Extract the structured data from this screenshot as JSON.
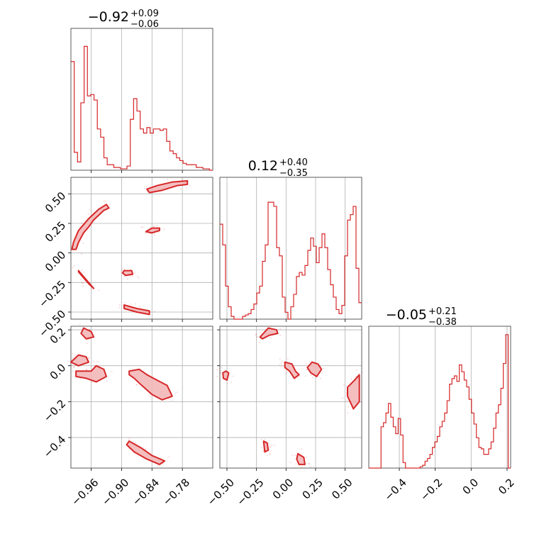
{
  "chart_data": {
    "type": "corner",
    "color": "#d62728",
    "parameters": [
      {
        "title_value": "−0.92",
        "title_plus": "+0.09",
        "title_minus": "−0.06",
        "range": [
          -1.0,
          -0.72
        ],
        "ticks": [
          -0.96,
          -0.9,
          -0.84,
          -0.78
        ],
        "ticklabels": [
          "−0.96",
          "−0.90",
          "−0.84",
          "−0.78"
        ]
      },
      {
        "title_value": "0.12",
        "title_plus": "+0.40",
        "title_minus": "−0.35",
        "range": [
          -0.56,
          0.64
        ],
        "ticks": [
          -0.5,
          -0.25,
          0.0,
          0.25,
          0.5
        ],
        "ticklabels": [
          "−0.50",
          "−0.25",
          "0.00",
          "0.25",
          "0.50"
        ]
      },
      {
        "title_value": "−0.05",
        "title_plus": "+0.21",
        "title_minus": "−0.38",
        "range": [
          -0.57,
          0.22
        ],
        "ticks": [
          -0.4,
          -0.2,
          0.0,
          0.2
        ],
        "ticklabels": [
          "−0.4",
          "−0.2",
          "0.0",
          "0.2"
        ]
      }
    ],
    "histograms": [
      [
        0.79,
        0.13,
        0.06,
        0.49,
        0.9,
        0.54,
        0.55,
        0.51,
        0.3,
        0.24,
        0.09,
        0.04,
        0.04,
        0.02,
        0.02,
        0.01,
        0.01,
        0.03,
        0.37,
        0.52,
        0.43,
        0.3,
        0.27,
        0.31,
        0.27,
        0.3,
        0.3,
        0.29,
        0.3,
        0.21,
        0.14,
        0.12,
        0.09,
        0.07,
        0.05,
        0.04,
        0.04,
        0.04,
        0.02,
        0.02,
        0.01,
        0.01,
        0.0
      ],
      [
        0.69,
        0.54,
        0.24,
        0.09,
        0.02,
        0.0,
        0.0,
        0.0,
        0.02,
        0.03,
        0.04,
        0.07,
        0.11,
        0.19,
        0.24,
        0.42,
        0.54,
        0.85,
        0.85,
        0.82,
        0.52,
        0.46,
        0.16,
        0.05,
        0.0,
        0.09,
        0.18,
        0.31,
        0.34,
        0.32,
        0.39,
        0.5,
        0.59,
        0.53,
        0.41,
        0.52,
        0.62,
        0.52,
        0.36,
        0.25,
        0.16,
        0.07,
        0.04,
        0.1,
        0.46,
        0.72,
        0.76,
        0.82,
        0.37,
        0.12
      ],
      [
        0.0,
        0.0,
        0.0,
        0.0,
        0.0,
        0.3,
        0.33,
        0.4,
        0.47,
        0.37,
        0.3,
        0.25,
        0.36,
        0.24,
        0.04,
        0.0,
        0.0,
        0.0,
        0.0,
        0.0,
        0.0,
        0.01,
        0.02,
        0.05,
        0.07,
        0.1,
        0.15,
        0.19,
        0.23,
        0.3,
        0.34,
        0.4,
        0.49,
        0.61,
        0.65,
        0.67,
        0.63,
        0.75,
        0.7,
        0.64,
        0.59,
        0.5,
        0.4,
        0.32,
        0.22,
        0.15,
        0.14,
        0.1,
        0.1,
        0.14,
        0.19,
        0.29,
        0.4,
        0.46,
        0.58,
        0.76,
        0.97,
        0.0
      ]
    ],
    "contours_xy_p0_p1": [
      [
        [
          -0.99,
          0.03
        ],
        [
          -0.985,
          0.09
        ],
        [
          -0.975,
          0.17
        ],
        [
          -0.965,
          0.22
        ],
        [
          -0.955,
          0.28
        ],
        [
          -0.945,
          0.32
        ],
        [
          -0.935,
          0.36
        ],
        [
          -0.925,
          0.38
        ],
        [
          -0.93,
          0.41
        ],
        [
          -0.945,
          0.37
        ],
        [
          -0.955,
          0.33
        ],
        [
          -0.965,
          0.29
        ],
        [
          -0.975,
          0.24
        ],
        [
          -0.985,
          0.19
        ],
        [
          -0.995,
          0.09
        ],
        [
          -0.998,
          0.03
        ]
      ],
      [
        [
          -0.845,
          0.51
        ],
        [
          -0.82,
          0.53
        ],
        [
          -0.79,
          0.57
        ],
        [
          -0.77,
          0.58
        ],
        [
          -0.77,
          0.61
        ],
        [
          -0.8,
          0.6
        ],
        [
          -0.83,
          0.57
        ],
        [
          -0.85,
          0.54
        ]
      ],
      [
        [
          -0.84,
          0.17
        ],
        [
          -0.825,
          0.19
        ],
        [
          -0.825,
          0.21
        ],
        [
          -0.84,
          0.21
        ],
        [
          -0.852,
          0.18
        ]
      ],
      [
        [
          -0.985,
          -0.15
        ],
        [
          -0.975,
          -0.2
        ],
        [
          -0.965,
          -0.25
        ],
        [
          -0.955,
          -0.3
        ],
        [
          -0.965,
          -0.26
        ],
        [
          -0.975,
          -0.21
        ],
        [
          -0.985,
          -0.16
        ]
      ],
      [
        [
          -0.895,
          -0.15
        ],
        [
          -0.88,
          -0.15
        ],
        [
          -0.878,
          -0.18
        ],
        [
          -0.892,
          -0.19
        ],
        [
          -0.898,
          -0.17
        ]
      ],
      [
        [
          -0.895,
          -0.44
        ],
        [
          -0.87,
          -0.47
        ],
        [
          -0.845,
          -0.49
        ],
        [
          -0.845,
          -0.52
        ],
        [
          -0.87,
          -0.5
        ],
        [
          -0.895,
          -0.47
        ]
      ]
    ],
    "contours_xy_p0_p2": [
      [
        [
          -0.975,
          0.21
        ],
        [
          -0.96,
          0.19
        ],
        [
          -0.955,
          0.16
        ],
        [
          -0.97,
          0.15
        ],
        [
          -0.98,
          0.18
        ]
      ],
      [
        [
          -1.0,
          0.02
        ],
        [
          -0.985,
          0.06
        ],
        [
          -0.97,
          0.05
        ],
        [
          -0.965,
          0.02
        ],
        [
          -0.985,
          0.0
        ]
      ],
      [
        [
          -0.99,
          -0.03
        ],
        [
          -0.96,
          -0.03
        ],
        [
          -0.95,
          0.0
        ],
        [
          -0.935,
          -0.02
        ],
        [
          -0.93,
          -0.06
        ],
        [
          -0.95,
          -0.09
        ],
        [
          -0.97,
          -0.07
        ],
        [
          -0.99,
          -0.06
        ]
      ],
      [
        [
          -0.885,
          -0.03
        ],
        [
          -0.865,
          -0.02
        ],
        [
          -0.85,
          -0.05
        ],
        [
          -0.83,
          -0.08
        ],
        [
          -0.81,
          -0.11
        ],
        [
          -0.8,
          -0.17
        ],
        [
          -0.82,
          -0.19
        ],
        [
          -0.84,
          -0.16
        ],
        [
          -0.86,
          -0.11
        ],
        [
          -0.875,
          -0.07
        ],
        [
          -0.885,
          -0.05
        ]
      ],
      [
        [
          -0.885,
          -0.42
        ],
        [
          -0.86,
          -0.46
        ],
        [
          -0.84,
          -0.5
        ],
        [
          -0.815,
          -0.53
        ],
        [
          -0.825,
          -0.55
        ],
        [
          -0.85,
          -0.52
        ],
        [
          -0.875,
          -0.48
        ],
        [
          -0.89,
          -0.44
        ]
      ]
    ],
    "contours_xy_p1_p2": [
      [
        [
          -0.22,
          0.16
        ],
        [
          -0.15,
          0.21
        ],
        [
          -0.08,
          0.2
        ],
        [
          -0.07,
          0.18
        ],
        [
          -0.14,
          0.17
        ],
        [
          -0.2,
          0.15
        ]
      ],
      [
        [
          -0.535,
          -0.04
        ],
        [
          -0.51,
          -0.03
        ],
        [
          -0.485,
          -0.04
        ],
        [
          -0.5,
          -0.08
        ],
        [
          -0.53,
          -0.07
        ]
      ],
      [
        [
          -0.19,
          -0.42
        ],
        [
          -0.16,
          -0.43
        ],
        [
          -0.15,
          -0.47
        ],
        [
          -0.18,
          -0.48
        ]
      ],
      [
        [
          -0.01,
          0.02
        ],
        [
          0.05,
          0.01
        ],
        [
          0.08,
          -0.03
        ],
        [
          0.11,
          -0.05
        ],
        [
          0.07,
          -0.07
        ],
        [
          0.03,
          -0.03
        ],
        [
          -0.01,
          -0.01
        ]
      ],
      [
        [
          0.18,
          -0.01
        ],
        [
          0.22,
          0.02
        ],
        [
          0.27,
          0.01
        ],
        [
          0.3,
          -0.02
        ],
        [
          0.26,
          -0.06
        ],
        [
          0.21,
          -0.04
        ]
      ],
      [
        [
          0.1,
          -0.49
        ],
        [
          0.15,
          -0.51
        ],
        [
          0.16,
          -0.55
        ],
        [
          0.11,
          -0.55
        ],
        [
          0.09,
          -0.52
        ]
      ],
      [
        [
          0.52,
          -0.12
        ],
        [
          0.58,
          -0.08
        ],
        [
          0.62,
          -0.05
        ],
        [
          0.62,
          -0.2
        ],
        [
          0.57,
          -0.24
        ],
        [
          0.52,
          -0.17
        ]
      ]
    ]
  }
}
